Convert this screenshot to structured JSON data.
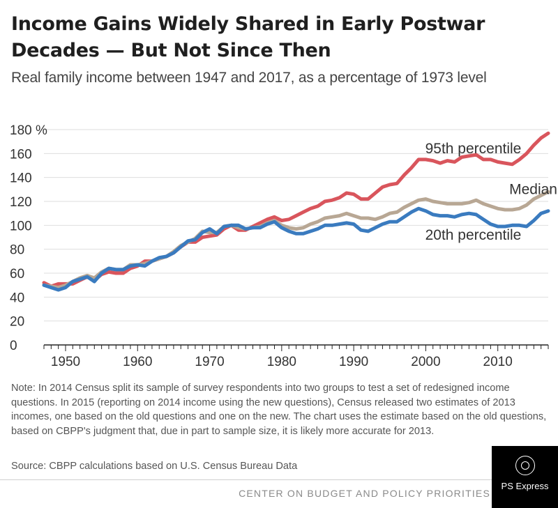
{
  "title": "Income Gains Widely Shared in Early Postwar Decades — But Not Since Then",
  "subtitle": "Real family income between 1947 and 2017, as a percentage of 1973 level",
  "note": "Note: In 2014 Census split its sample of survey respondents into two groups to test a set of redesigned income questions.  In 2015 (reporting on 2014 income using the new questions), Census released two estimates of 2013 incomes, one based on the old questions and one on the new.  The chart uses the estimate based on the old questions, based on CBPP's judgment that, due in part to sample size, it is likely more accurate for 2013.",
  "source": "Source: CBPP calculations based on U.S. Census Bureau Data",
  "organization": "CENTER ON BUDGET AND POLICY PRIORITIES",
  "badge": {
    "text": "PS Express",
    "icon": "ps-express-logo-icon"
  },
  "chart_data": {
    "type": "line",
    "xlim": [
      1947,
      2017
    ],
    "ylim": [
      0,
      180
    ],
    "y_ticks": [
      0,
      20,
      40,
      60,
      80,
      100,
      120,
      140,
      160,
      180
    ],
    "y_tick_labels": [
      "0",
      "20",
      "40",
      "60",
      "80",
      "100",
      "120",
      "140",
      "160",
      "180 %"
    ],
    "x_ticks": [
      1950,
      1960,
      1970,
      1980,
      1990,
      2000,
      2010
    ],
    "x_tick_labels": [
      "1950",
      "1960",
      "1970",
      "1980",
      "1990",
      "2000",
      "2010"
    ],
    "grid": true,
    "legend": "direct labels at right of lines",
    "x": [
      1947,
      1948,
      1949,
      1950,
      1951,
      1952,
      1953,
      1954,
      1955,
      1956,
      1957,
      1958,
      1959,
      1960,
      1961,
      1962,
      1963,
      1964,
      1965,
      1966,
      1967,
      1968,
      1969,
      1970,
      1971,
      1972,
      1973,
      1974,
      1975,
      1976,
      1977,
      1978,
      1979,
      1980,
      1981,
      1982,
      1983,
      1984,
      1985,
      1986,
      1987,
      1988,
      1989,
      1990,
      1991,
      1992,
      1993,
      1994,
      1995,
      1996,
      1997,
      1998,
      1999,
      2000,
      2001,
      2002,
      2003,
      2004,
      2005,
      2006,
      2007,
      2008,
      2009,
      2010,
      2011,
      2012,
      2013,
      2014,
      2015,
      2016,
      2017
    ],
    "series": [
      {
        "name": "95th percentile",
        "color": "#d9555c",
        "values": [
          52,
          49,
          51,
          51,
          51,
          54,
          57,
          54,
          59,
          61,
          60,
          60,
          64,
          66,
          70,
          70,
          72,
          74,
          77,
          82,
          86,
          86,
          90,
          91,
          92,
          97,
          100,
          96,
          96,
          99,
          102,
          105,
          107,
          104,
          105,
          108,
          111,
          114,
          116,
          120,
          121,
          123,
          127,
          126,
          122,
          122,
          127,
          132,
          134,
          135,
          142,
          148,
          155,
          155,
          154,
          152,
          154,
          153,
          157,
          158,
          159,
          155,
          155,
          153,
          152,
          151,
          155,
          160,
          167,
          173,
          177
        ]
      },
      {
        "name": "Median",
        "color": "#b8a794",
        "values": [
          50,
          49,
          48,
          50,
          53,
          56,
          58,
          56,
          61,
          64,
          63,
          63,
          67,
          67,
          68,
          70,
          72,
          74,
          78,
          83,
          86,
          89,
          95,
          94,
          94,
          99,
          100,
          98,
          97,
          98,
          99,
          102,
          104,
          100,
          98,
          97,
          98,
          101,
          103,
          106,
          107,
          108,
          110,
          108,
          106,
          106,
          105,
          107,
          110,
          111,
          115,
          118,
          121,
          122,
          120,
          119,
          118,
          118,
          118,
          119,
          121,
          118,
          116,
          114,
          113,
          113,
          114,
          117,
          122,
          125,
          128
        ]
      },
      {
        "name": "20th percentile",
        "color": "#3a7bbf",
        "values": [
          50,
          48,
          46,
          48,
          53,
          55,
          57,
          53,
          60,
          64,
          63,
          63,
          66,
          67,
          66,
          70,
          73,
          74,
          77,
          82,
          87,
          88,
          94,
          97,
          93,
          99,
          100,
          100,
          97,
          98,
          98,
          101,
          103,
          98,
          95,
          93,
          93,
          95,
          97,
          100,
          100,
          101,
          102,
          101,
          96,
          95,
          98,
          101,
          103,
          103,
          107,
          111,
          114,
          112,
          109,
          108,
          108,
          107,
          109,
          110,
          109,
          105,
          101,
          99,
          99,
          100,
          100,
          99,
          104,
          110,
          112
        ]
      }
    ]
  }
}
